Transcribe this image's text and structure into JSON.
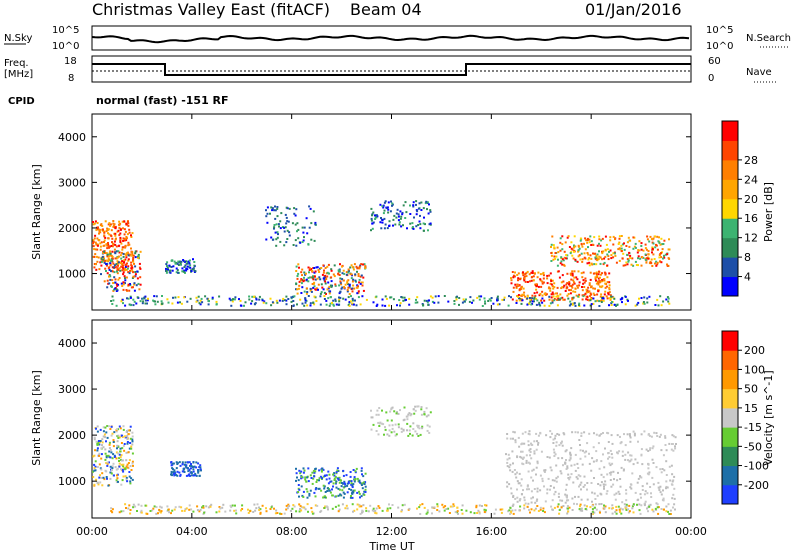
{
  "header": {
    "title": "Christmas Valley East (fitACF)",
    "beam": "Beam 04",
    "date": "01/Jan/2016"
  },
  "status_panels": {
    "nsky_label": "N.Sky",
    "nsearch_label": "N.Search",
    "nsky_ticks": [
      "10^5",
      "10^0"
    ],
    "nsearch_ticks": [
      "10^5",
      "10^0"
    ],
    "freq_label_1": "Freq.",
    "freq_label_2": "[MHz]",
    "freq_ticks": [
      "18",
      "8"
    ],
    "nave_label": "Nave",
    "nave_ticks": [
      "60",
      "0"
    ],
    "cpid_label": "CPID",
    "cpid_text": "normal (fast) -151 RF"
  },
  "chart_data": [
    {
      "type": "heatmap",
      "panel": "power",
      "ylabel": "Slant Range [km]",
      "xlabel": "",
      "yticks": [
        "1000",
        "2000",
        "3000",
        "4000"
      ],
      "colorbar_label": "Power [dB]",
      "colorbar_ticks": [
        "4",
        "8",
        "12",
        "16",
        "20",
        "24",
        "28"
      ],
      "colorbar_colors": [
        "#0000ff",
        "#1d4fa8",
        "#2e8b57",
        "#3cb371",
        "#ffd700",
        "#ffa500",
        "#ff7f00",
        "#ff4500",
        "#ff0000"
      ]
    },
    {
      "type": "heatmap",
      "panel": "velocity",
      "ylabel": "Slant Range [km]",
      "xlabel": "Time UT",
      "xticks": [
        "00:00",
        "04:00",
        "08:00",
        "12:00",
        "16:00",
        "20:00",
        "00:00"
      ],
      "yticks": [
        "1000",
        "2000",
        "3000",
        "4000"
      ],
      "colorbar_label": "Velocity [m s^-1]",
      "colorbar_ticks": [
        "200",
        "100",
        "50",
        "15",
        "-15",
        "-50",
        "-100",
        "-200"
      ],
      "colorbar_colors": [
        "#1f3fff",
        "#1d6fa8",
        "#2e8b57",
        "#66cc33",
        "#c8c8c8",
        "#ffcc33",
        "#ff9900",
        "#ff6600",
        "#ff0000"
      ]
    }
  ]
}
